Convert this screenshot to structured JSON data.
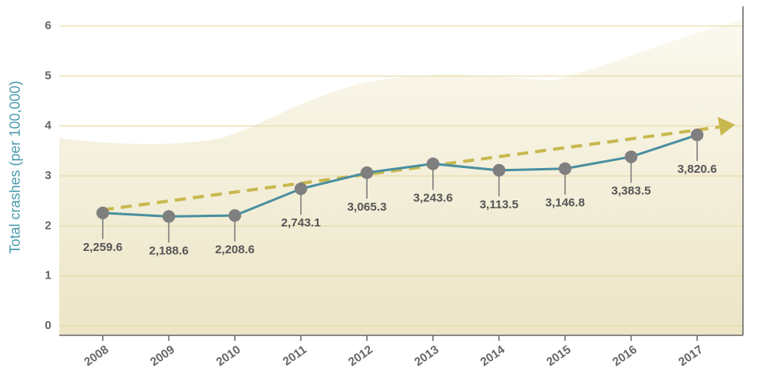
{
  "chart_data": {
    "type": "line",
    "y_label": "Total crashes (per 100,000)",
    "categories": [
      "2008",
      "2009",
      "2010",
      "2011",
      "2012",
      "2013",
      "2014",
      "2015",
      "2016",
      "2017"
    ],
    "series": [
      {
        "name": "Total crashes",
        "color": "#4a8fa0",
        "values": [
          2.2596,
          2.1886,
          2.2086,
          2.7431,
          3.0653,
          3.2436,
          3.1135,
          3.1468,
          3.3835,
          3.8206
        ],
        "value_labels": [
          "2,259.6",
          "2,188.6",
          "2,208.6",
          "2,743.1",
          "3,065.3",
          "3,243.6",
          "3,113.5",
          "3,146.8",
          "3,383.5",
          "3,820.6"
        ]
      }
    ],
    "ylim": [
      0,
      6
    ],
    "yticks": [
      0,
      1,
      2,
      3,
      4,
      5,
      6
    ],
    "grid": true
  }
}
